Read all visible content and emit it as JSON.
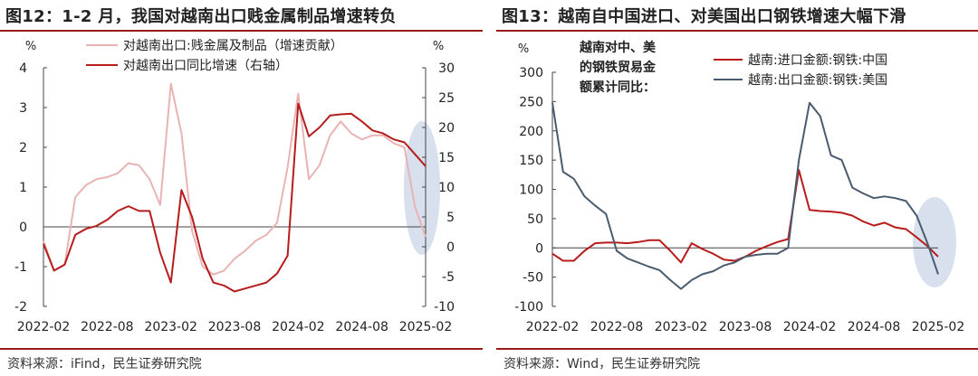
{
  "left": {
    "title": "图12：1-2 月，我国对越南出口贱金属制品增速转负",
    "source": "资料来源：iFind，民生证券研究院"
  },
  "right": {
    "title": "图13：越南自中国进口、对美国出口钢铁增速大幅下滑",
    "source": "资料来源：Wind，民生证券研究院"
  },
  "chart_data": [
    {
      "type": "line",
      "x": [
        "2022-02",
        "2022-03",
        "2022-04",
        "2022-05",
        "2022-06",
        "2022-07",
        "2022-08",
        "2022-09",
        "2022-10",
        "2022-11",
        "2022-12",
        "2023-01",
        "2023-02",
        "2023-03",
        "2023-04",
        "2023-05",
        "2023-06",
        "2023-07",
        "2023-08",
        "2023-09",
        "2023-10",
        "2023-11",
        "2023-12",
        "2024-01",
        "2024-02",
        "2024-03",
        "2024-04",
        "2024-05",
        "2024-06",
        "2024-07",
        "2024-08",
        "2024-09",
        "2024-10",
        "2024-11",
        "2024-12",
        "2025-01",
        "2025-02"
      ],
      "xticks": [
        "2022-02",
        "2022-08",
        "2023-02",
        "2023-08",
        "2024-02",
        "2024-08",
        "2025-02"
      ],
      "left_unit": "%",
      "right_unit": "%",
      "ylim_left": [
        -2,
        4
      ],
      "yticks_left": [
        -2,
        -1,
        0,
        1,
        2,
        3,
        4
      ],
      "ylim_right": [
        -10,
        30
      ],
      "yticks_right": [
        -10,
        -5,
        0,
        5,
        10,
        15,
        20,
        25,
        30
      ],
      "series": [
        {
          "name": "对越南出口:贱金属及制品（增速贡献）",
          "axis": "left",
          "color": "#eab3b3",
          "values": [
            -0.35,
            -1.1,
            -0.95,
            0.75,
            1.05,
            1.2,
            1.25,
            1.35,
            1.6,
            1.55,
            1.2,
            0.55,
            3.6,
            2.35,
            -0.1,
            -1.0,
            -1.2,
            -1.1,
            -0.8,
            -0.6,
            -0.35,
            -0.2,
            0.1,
            1.5,
            3.35,
            1.2,
            1.55,
            2.3,
            2.65,
            2.35,
            2.2,
            2.3,
            2.3,
            2.1,
            2.0,
            0.5,
            -0.25
          ]
        },
        {
          "name": "对越南出口同比增速（右轴）",
          "axis": "right",
          "color": "#b71c1c",
          "values": [
            0.5,
            -4,
            -3,
            2,
            3,
            3.5,
            4.5,
            6,
            6.8,
            6,
            6,
            -1,
            -6,
            9.5,
            5,
            -2,
            -6,
            -6.5,
            -7.5,
            -7,
            -6.5,
            -6,
            -4.5,
            -1.5,
            24,
            18.5,
            20,
            22,
            22.2,
            22.3,
            21,
            19.5,
            19,
            18,
            17.5,
            15.5,
            13.5
          ]
        }
      ]
    },
    {
      "type": "line",
      "x": [
        "2022-02",
        "2022-03",
        "2022-04",
        "2022-05",
        "2022-06",
        "2022-07",
        "2022-08",
        "2022-09",
        "2022-10",
        "2022-11",
        "2022-12",
        "2023-01",
        "2023-02",
        "2023-03",
        "2023-04",
        "2023-05",
        "2023-06",
        "2023-07",
        "2023-08",
        "2023-09",
        "2023-10",
        "2023-11",
        "2023-12",
        "2024-01",
        "2024-02",
        "2024-03",
        "2024-04",
        "2024-05",
        "2024-06",
        "2024-07",
        "2024-08",
        "2024-09",
        "2024-10",
        "2024-11",
        "2024-12",
        "2025-01",
        "2025-02"
      ],
      "xticks": [
        "2022-02",
        "2022-08",
        "2023-02",
        "2023-08",
        "2024-02",
        "2024-08",
        "2025-02"
      ],
      "left_unit": "%",
      "ylim": [
        -100,
        300
      ],
      "yticks": [
        -100,
        -50,
        0,
        50,
        100,
        150,
        200,
        250,
        300
      ],
      "annotation": "越南对中、美的钢铁贸易金额累计同比：",
      "annotation_lines": [
        "越南对中、美",
        "的钢铁贸易金",
        "额累计同比："
      ],
      "series": [
        {
          "name": "越南:进口金额:钢铁:中国",
          "color": "#b71c1c",
          "values": [
            -10,
            -22,
            -22,
            -5,
            8,
            9,
            9,
            8,
            10,
            13,
            13,
            -5,
            -25,
            8,
            -2,
            -10,
            -20,
            -22,
            -15,
            -5,
            3,
            10,
            15,
            133,
            65,
            63,
            62,
            60,
            55,
            45,
            38,
            43,
            35,
            32,
            18,
            3,
            -15
          ]
        },
        {
          "name": "越南:出口金额:钢铁:美国",
          "color": "#4a5b70",
          "values": [
            248,
            130,
            118,
            88,
            72,
            58,
            -5,
            -18,
            -25,
            -32,
            -38,
            -55,
            -70,
            -55,
            -45,
            -40,
            -30,
            -25,
            -15,
            -12,
            -10,
            -10,
            0,
            150,
            248,
            225,
            158,
            150,
            103,
            93,
            85,
            88,
            85,
            80,
            55,
            8,
            -45
          ]
        }
      ]
    }
  ]
}
